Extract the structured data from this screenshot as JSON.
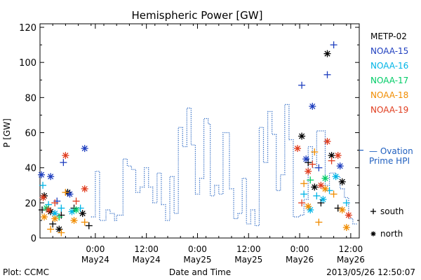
{
  "chart_data": {
    "type": "scatter",
    "title": "Hemispheric Power [GW]",
    "xlabel": "Date and Time",
    "ylabel": "P [GW]",
    "ylim": [
      0,
      122
    ],
    "xlim": [
      "2013-05-23 11:00",
      "2013-05-26 14:00"
    ],
    "yticks": [
      0,
      20,
      40,
      60,
      80,
      100,
      120
    ],
    "xticks": [
      {
        "at": "2013-05-24 00:00",
        "line1": "0:00",
        "line2": "May24"
      },
      {
        "at": "2013-05-24 12:00",
        "line1": "12:00",
        "line2": "May24"
      },
      {
        "at": "2013-05-25 00:00",
        "line1": "0:00",
        "line2": "May25"
      },
      {
        "at": "2013-05-25 12:00",
        "line1": "12:00",
        "line2": "May25"
      },
      {
        "at": "2013-05-26 00:00",
        "line1": "0:00",
        "line2": "May26"
      },
      {
        "at": "2013-05-26 12:00",
        "line1": "12:00",
        "line2": "May26"
      }
    ],
    "grid": false,
    "legend_position": "right",
    "series": [
      {
        "name": "METP-02",
        "color": "#000000",
        "points": [
          {
            "t": "2013-05-23 11:30",
            "y": 16,
            "hemi": "south"
          },
          {
            "t": "2013-05-23 12:00",
            "y": 24,
            "hemi": "north"
          },
          {
            "t": "2013-05-23 13:30",
            "y": 15,
            "hemi": "north"
          },
          {
            "t": "2013-05-23 14:00",
            "y": 8,
            "hemi": "south"
          },
          {
            "t": "2013-05-23 15:30",
            "y": 5,
            "hemi": "north"
          },
          {
            "t": "2013-05-23 16:00",
            "y": 13,
            "hemi": "south"
          },
          {
            "t": "2013-05-23 17:30",
            "y": 26,
            "hemi": "north"
          },
          {
            "t": "2013-05-23 19:00",
            "y": 17,
            "hemi": "south"
          },
          {
            "t": "2013-05-23 21:00",
            "y": 14,
            "hemi": "north"
          },
          {
            "t": "2013-05-23 22:30",
            "y": 7,
            "hemi": "south"
          },
          {
            "t": "2013-05-26 00:30",
            "y": 58,
            "hemi": "north"
          },
          {
            "t": "2013-05-26 02:00",
            "y": 43,
            "hemi": "south"
          },
          {
            "t": "2013-05-26 03:30",
            "y": 29,
            "hemi": "north"
          },
          {
            "t": "2013-05-26 05:00",
            "y": 20,
            "hemi": "south"
          },
          {
            "t": "2013-05-26 06:30",
            "y": 105,
            "hemi": "north"
          },
          {
            "t": "2013-05-26 07:30",
            "y": 47,
            "hemi": "north"
          },
          {
            "t": "2013-05-26 09:00",
            "y": 17,
            "hemi": "south"
          },
          {
            "t": "2013-05-26 10:00",
            "y": 32,
            "hemi": "north"
          }
        ]
      },
      {
        "name": "NOAA-15",
        "color": "#1f3fbf",
        "points": [
          {
            "t": "2013-05-23 11:20",
            "y": 36,
            "hemi": "north"
          },
          {
            "t": "2013-05-23 13:30",
            "y": 35,
            "hemi": "north"
          },
          {
            "t": "2013-05-23 15:00",
            "y": 21,
            "hemi": "south"
          },
          {
            "t": "2013-05-23 16:30",
            "y": 43,
            "hemi": "south"
          },
          {
            "t": "2013-05-23 18:00",
            "y": 25,
            "hemi": "north"
          },
          {
            "t": "2013-05-23 21:30",
            "y": 51,
            "hemi": "north"
          },
          {
            "t": "2013-05-26 00:30",
            "y": 87,
            "hemi": "south"
          },
          {
            "t": "2013-05-26 01:30",
            "y": 45,
            "hemi": "north"
          },
          {
            "t": "2013-05-26 03:00",
            "y": 75,
            "hemi": "north"
          },
          {
            "t": "2013-05-26 04:30",
            "y": 40,
            "hemi": "south"
          },
          {
            "t": "2013-05-26 06:30",
            "y": 93,
            "hemi": "south"
          },
          {
            "t": "2013-05-26 08:00",
            "y": 110,
            "hemi": "south"
          },
          {
            "t": "2013-05-26 09:30",
            "y": 41,
            "hemi": "north"
          }
        ]
      },
      {
        "name": "NOAA-16",
        "color": "#00b4e6",
        "points": [
          {
            "t": "2013-05-23 11:40",
            "y": 30,
            "hemi": "south"
          },
          {
            "t": "2013-05-23 13:00",
            "y": 19,
            "hemi": "south"
          },
          {
            "t": "2013-05-23 14:30",
            "y": 14,
            "hemi": "north"
          },
          {
            "t": "2013-05-23 16:00",
            "y": 17,
            "hemi": "south"
          },
          {
            "t": "2013-05-23 18:30",
            "y": 15,
            "hemi": "north"
          },
          {
            "t": "2013-05-23 20:30",
            "y": 17,
            "hemi": "south"
          },
          {
            "t": "2013-05-26 01:00",
            "y": 25,
            "hemi": "south"
          },
          {
            "t": "2013-05-26 02:30",
            "y": 16,
            "hemi": "north"
          },
          {
            "t": "2013-05-26 04:00",
            "y": 24,
            "hemi": "south"
          },
          {
            "t": "2013-05-26 05:30",
            "y": 22,
            "hemi": "north"
          },
          {
            "t": "2013-05-26 07:00",
            "y": 27,
            "hemi": "south"
          },
          {
            "t": "2013-05-26 08:30",
            "y": 35,
            "hemi": "north"
          },
          {
            "t": "2013-05-26 11:00",
            "y": 20,
            "hemi": "south"
          }
        ]
      },
      {
        "name": "NOAA-17",
        "color": "#00cc66",
        "points": [
          {
            "t": "2013-05-23 12:30",
            "y": 17,
            "hemi": "north"
          },
          {
            "t": "2013-05-23 15:30",
            "y": 12,
            "hemi": "south"
          },
          {
            "t": "2013-05-23 19:30",
            "y": 16,
            "hemi": "north"
          },
          {
            "t": "2013-05-26 02:30",
            "y": 33,
            "hemi": "south"
          },
          {
            "t": "2013-05-26 06:00",
            "y": 34,
            "hemi": "north"
          }
        ]
      },
      {
        "name": "NOAA-18",
        "color": "#f08c00",
        "points": [
          {
            "t": "2013-05-23 12:00",
            "y": 12,
            "hemi": "north"
          },
          {
            "t": "2013-05-23 13:30",
            "y": 5,
            "hemi": "south"
          },
          {
            "t": "2013-05-23 14:30",
            "y": 11,
            "hemi": "north"
          },
          {
            "t": "2013-05-23 16:00",
            "y": 3,
            "hemi": "south"
          },
          {
            "t": "2013-05-23 17:00",
            "y": 26,
            "hemi": "south"
          },
          {
            "t": "2013-05-23 19:00",
            "y": 10,
            "hemi": "north"
          },
          {
            "t": "2013-05-23 21:30",
            "y": 9,
            "hemi": "south"
          },
          {
            "t": "2013-05-26 01:00",
            "y": 31,
            "hemi": "south"
          },
          {
            "t": "2013-05-26 02:00",
            "y": 18,
            "hemi": "north"
          },
          {
            "t": "2013-05-26 03:30",
            "y": 49,
            "hemi": "south"
          },
          {
            "t": "2013-05-26 04:30",
            "y": 9,
            "hemi": "south"
          },
          {
            "t": "2013-05-26 06:00",
            "y": 28,
            "hemi": "north"
          },
          {
            "t": "2013-05-26 08:00",
            "y": 25,
            "hemi": "south"
          },
          {
            "t": "2013-05-26 10:00",
            "y": 16,
            "hemi": "north"
          },
          {
            "t": "2013-05-26 11:00",
            "y": 6,
            "hemi": "north"
          }
        ]
      },
      {
        "name": "NOAA-19",
        "color": "#e03c1e",
        "points": [
          {
            "t": "2013-05-23 11:45",
            "y": 23,
            "hemi": "north"
          },
          {
            "t": "2013-05-23 13:00",
            "y": 16,
            "hemi": "north"
          },
          {
            "t": "2013-05-23 14:30",
            "y": 20,
            "hemi": "south"
          },
          {
            "t": "2013-05-23 17:00",
            "y": 47,
            "hemi": "north"
          },
          {
            "t": "2013-05-23 19:30",
            "y": 21,
            "hemi": "south"
          },
          {
            "t": "2013-05-23 21:30",
            "y": 28,
            "hemi": "north"
          },
          {
            "t": "2013-05-25 23:30",
            "y": 51,
            "hemi": "north"
          },
          {
            "t": "2013-05-26 00:30",
            "y": 20,
            "hemi": "south"
          },
          {
            "t": "2013-05-26 02:00",
            "y": 38,
            "hemi": "north"
          },
          {
            "t": "2013-05-26 03:00",
            "y": 42,
            "hemi": "south"
          },
          {
            "t": "2013-05-26 05:00",
            "y": 30,
            "hemi": "north"
          },
          {
            "t": "2013-05-26 06:30",
            "y": 55,
            "hemi": "north"
          },
          {
            "t": "2013-05-26 07:30",
            "y": 44,
            "hemi": "south"
          },
          {
            "t": "2013-05-26 09:00",
            "y": 47,
            "hemi": "north"
          },
          {
            "t": "2013-05-26 11:30",
            "y": 13,
            "hemi": "north"
          }
        ]
      }
    ],
    "ovation": {
      "name": "Ovation Prime HPI",
      "label_line1": "— Ovation",
      "label_line2": "Prime HPI",
      "color": "#1f5fbf",
      "marker_value": 50,
      "steps": [
        {
          "t": "2013-05-23 23:00",
          "y": 12
        },
        {
          "t": "2013-05-24 00:00",
          "y": 38
        },
        {
          "t": "2013-05-24 01:00",
          "y": 10
        },
        {
          "t": "2013-05-24 02:30",
          "y": 16
        },
        {
          "t": "2013-05-24 03:30",
          "y": 14
        },
        {
          "t": "2013-05-24 04:30",
          "y": 10
        },
        {
          "t": "2013-05-24 05:00",
          "y": 13
        },
        {
          "t": "2013-05-24 06:30",
          "y": 45
        },
        {
          "t": "2013-05-24 07:30",
          "y": 41
        },
        {
          "t": "2013-05-24 08:30",
          "y": 39
        },
        {
          "t": "2013-05-24 09:30",
          "y": 26
        },
        {
          "t": "2013-05-24 10:30",
          "y": 29
        },
        {
          "t": "2013-05-24 11:30",
          "y": 40
        },
        {
          "t": "2013-05-24 12:30",
          "y": 29
        },
        {
          "t": "2013-05-24 13:30",
          "y": 20
        },
        {
          "t": "2013-05-24 14:30",
          "y": 37
        },
        {
          "t": "2013-05-24 15:30",
          "y": 19
        },
        {
          "t": "2013-05-24 16:30",
          "y": 10
        },
        {
          "t": "2013-05-24 17:30",
          "y": 35
        },
        {
          "t": "2013-05-24 18:30",
          "y": 14
        },
        {
          "t": "2013-05-24 19:30",
          "y": 63
        },
        {
          "t": "2013-05-24 20:30",
          "y": 52
        },
        {
          "t": "2013-05-24 21:30",
          "y": 74
        },
        {
          "t": "2013-05-24 22:30",
          "y": 53
        },
        {
          "t": "2013-05-24 23:30",
          "y": 25
        },
        {
          "t": "2013-05-25 00:30",
          "y": 34
        },
        {
          "t": "2013-05-25 01:30",
          "y": 68
        },
        {
          "t": "2013-05-25 02:30",
          "y": 65
        },
        {
          "t": "2013-05-25 03:00",
          "y": 24
        },
        {
          "t": "2013-05-25 04:00",
          "y": 30
        },
        {
          "t": "2013-05-25 05:00",
          "y": 25
        },
        {
          "t": "2013-05-25 06:00",
          "y": 60
        },
        {
          "t": "2013-05-25 07:00",
          "y": 60
        },
        {
          "t": "2013-05-25 07:30",
          "y": 28
        },
        {
          "t": "2013-05-25 08:30",
          "y": 11
        },
        {
          "t": "2013-05-25 09:30",
          "y": 14
        },
        {
          "t": "2013-05-25 10:30",
          "y": 34
        },
        {
          "t": "2013-05-25 11:30",
          "y": 8
        },
        {
          "t": "2013-05-25 12:30",
          "y": 16
        },
        {
          "t": "2013-05-25 13:30",
          "y": 7
        },
        {
          "t": "2013-05-25 14:30",
          "y": 63
        },
        {
          "t": "2013-05-25 15:30",
          "y": 43
        },
        {
          "t": "2013-05-25 16:30",
          "y": 72
        },
        {
          "t": "2013-05-25 17:30",
          "y": 59
        },
        {
          "t": "2013-05-25 18:30",
          "y": 27
        },
        {
          "t": "2013-05-25 19:30",
          "y": 36
        },
        {
          "t": "2013-05-25 20:30",
          "y": 76
        },
        {
          "t": "2013-05-25 21:30",
          "y": 56
        },
        {
          "t": "2013-05-25 22:30",
          "y": 12
        },
        {
          "t": "2013-05-26 00:00",
          "y": 13
        },
        {
          "t": "2013-05-26 01:00",
          "y": 22
        },
        {
          "t": "2013-05-26 02:00",
          "y": 52
        },
        {
          "t": "2013-05-26 03:00",
          "y": 40
        },
        {
          "t": "2013-05-26 04:00",
          "y": 61
        },
        {
          "t": "2013-05-26 05:00",
          "y": 61
        },
        {
          "t": "2013-05-26 06:00",
          "y": 30
        },
        {
          "t": "2013-05-26 07:00",
          "y": 37
        },
        {
          "t": "2013-05-26 08:30",
          "y": 35
        },
        {
          "t": "2013-05-26 09:30",
          "y": 28
        },
        {
          "t": "2013-05-26 10:30",
          "y": 23
        },
        {
          "t": "2013-05-26 11:30",
          "y": 11
        },
        {
          "t": "2013-05-26 12:30",
          "y": 8
        }
      ]
    },
    "symbol_legend": [
      {
        "glyph": "+",
        "label": "south",
        "hemi": "south"
      },
      {
        "glyph": "*",
        "label": "north",
        "hemi": "north"
      }
    ]
  },
  "footer": {
    "left": "Plot: CCMC",
    "right": "2013/05/26 12:50:07"
  }
}
